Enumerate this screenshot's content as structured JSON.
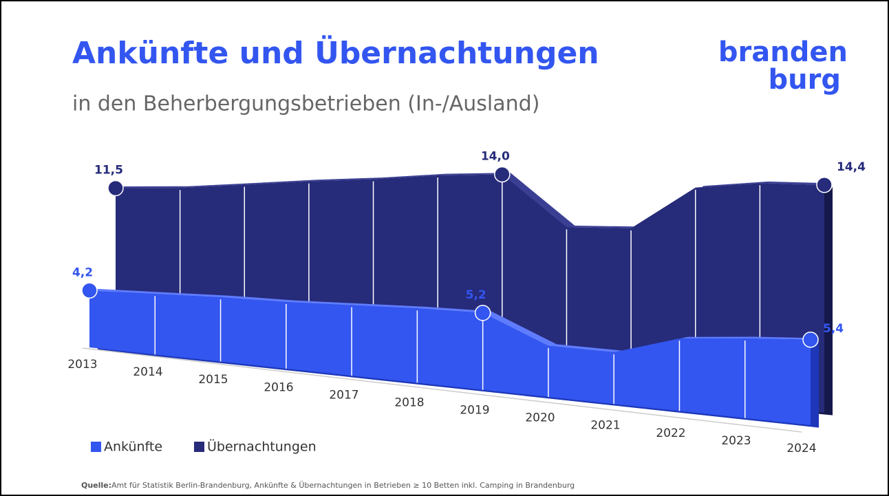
{
  "chart_data": {
    "type": "area3d",
    "title": "Ankünfte und Übernachtungen",
    "subtitle": "in den Beherbergungsbetrieben (In-/Ausland)",
    "logo": [
      "branden",
      "burg"
    ],
    "categories": [
      "2013",
      "2014",
      "2015",
      "2016",
      "2017",
      "2018",
      "2019",
      "2020",
      "2021",
      "2022",
      "2023",
      "2024"
    ],
    "series": [
      {
        "name": "Übernachtungen",
        "color": "#262b7a",
        "values": [
          11.5,
          11.8,
          12.3,
          12.8,
          13.2,
          13.7,
          14.0,
          10.7,
          10.9,
          13.8,
          14.3,
          14.4
        ],
        "value_labels": [
          "11,5",
          null,
          null,
          null,
          null,
          null,
          "14,0",
          null,
          null,
          null,
          null,
          "14,4"
        ]
      },
      {
        "name": "Ankünfte",
        "color": "#3356f0",
        "values": [
          4.2,
          4.4,
          4.6,
          4.7,
          4.9,
          5.1,
          5.2,
          3.4,
          3.4,
          4.7,
          5.1,
          5.4
        ],
        "value_labels": [
          "4,2",
          null,
          null,
          null,
          null,
          null,
          "5,2",
          null,
          null,
          null,
          null,
          "5,4"
        ]
      }
    ],
    "source_label": "Quelle:",
    "source": "Amt für Statistik Berlin-Brandenburg, Ankünfte & Übernachtungen in Betrieben ≥ 10 Betten inkl. Camping in Brandenburg"
  }
}
